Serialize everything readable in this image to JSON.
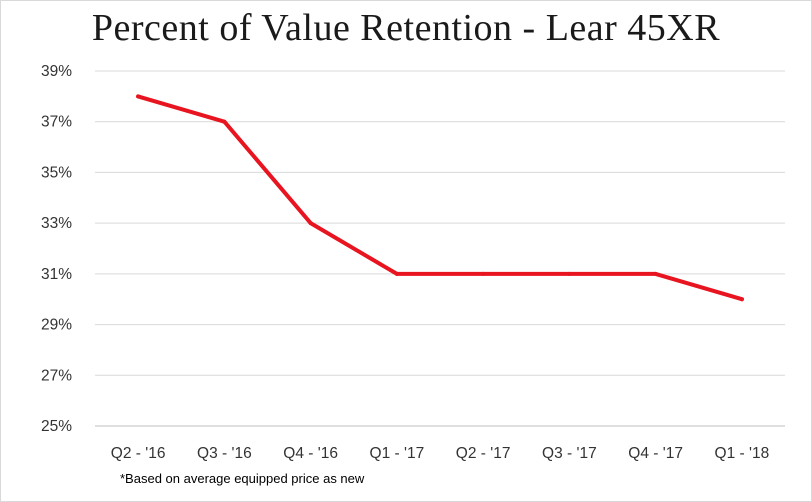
{
  "chart_data": {
    "type": "line",
    "title": "Percent of Value Retention - Lear 45XR",
    "xlabel": "",
    "ylabel": "",
    "categories": [
      "Q2 - '16",
      "Q3 - '16",
      "Q4 - '16",
      "Q1 - '17",
      "Q2 - '17",
      "Q3 - '17",
      "Q4 - '17",
      "Q1 - '18"
    ],
    "series": [
      {
        "values": [
          38,
          37,
          33,
          31,
          31,
          31,
          31,
          30
        ],
        "color": "#e8141f"
      }
    ],
    "y_ticks": [
      "25%",
      "27%",
      "29%",
      "31%",
      "33%",
      "35%",
      "37%",
      "39%"
    ],
    "ylim": [
      25,
      39
    ],
    "grid": true,
    "legend": "none",
    "footnote": "*Based on average equipped price as new"
  }
}
